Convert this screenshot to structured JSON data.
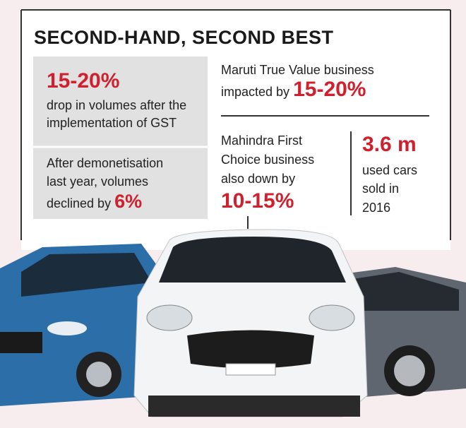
{
  "title": "SECOND-HAND, SECOND BEST",
  "gst": {
    "figure": "15-20%",
    "lines": [
      "drop in volumes after the",
      "implementation of GST"
    ]
  },
  "demonetisation": {
    "lines": [
      "After demonetisation",
      "last year, volumes",
      "declined by"
    ],
    "figure": "6%"
  },
  "maruti": {
    "lines": [
      "Maruti True Value business",
      "impacted by"
    ],
    "figure": "15-20%"
  },
  "mahindra": {
    "lines": [
      "Mahindra First",
      "Choice business",
      "also down by"
    ],
    "figure": "10-15%"
  },
  "used_cars": {
    "figure": "3.6 m",
    "lines": [
      "used cars",
      "sold in",
      "2016"
    ]
  }
}
